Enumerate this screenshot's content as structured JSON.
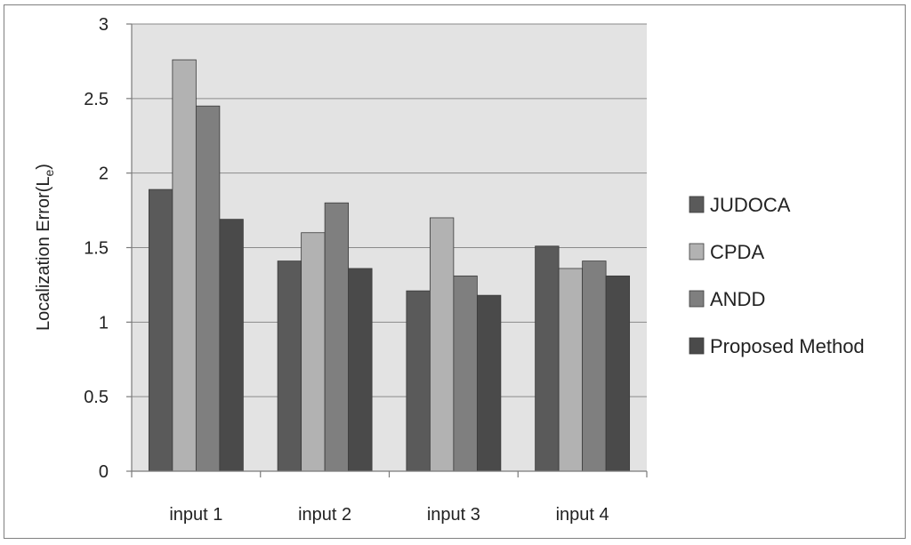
{
  "chart_data": {
    "type": "bar",
    "categories": [
      "input 1",
      "input 2",
      "input 3",
      "input 4"
    ],
    "series": [
      {
        "name": "JUDOCA",
        "values": [
          1.89,
          1.41,
          1.21,
          1.51
        ],
        "color": "#5a5a5a"
      },
      {
        "name": "CPDA",
        "values": [
          2.76,
          1.6,
          1.7,
          1.36
        ],
        "color": "#b2b2b2"
      },
      {
        "name": "ANDD",
        "values": [
          2.45,
          1.8,
          1.31,
          1.41
        ],
        "color": "#7f7f7f"
      },
      {
        "name": "Proposed Method",
        "values": [
          1.69,
          1.36,
          1.18,
          1.31
        ],
        "color": "#4a4a4a"
      }
    ],
    "ylabel": "Localization Error(L",
    "ylabel_subscript": "e",
    "ylabel_close": ")",
    "ylim": [
      0,
      3
    ],
    "yticks": [
      0,
      0.5,
      1,
      1.5,
      2,
      2.5,
      3
    ],
    "ytick_labels": [
      "0",
      "0.5",
      "1",
      "1.5",
      "2",
      "2.5",
      "3"
    ],
    "grid": true,
    "legend_position": "right",
    "plot_background": "#e3e3e3"
  }
}
